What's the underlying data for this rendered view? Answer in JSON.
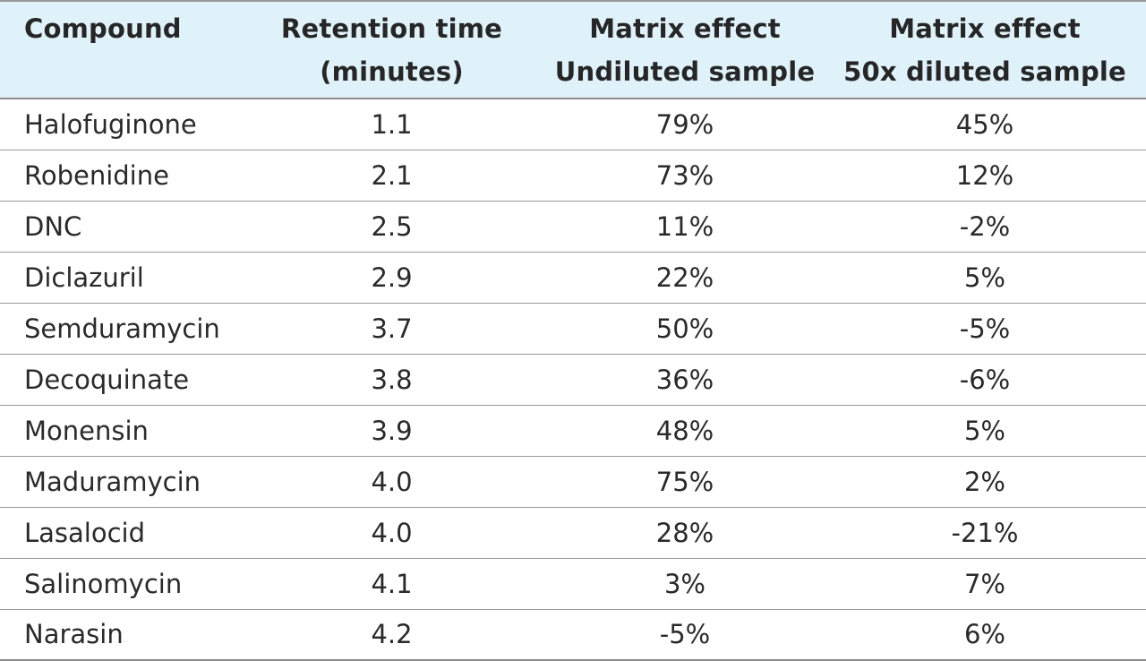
{
  "table": {
    "headers": [
      {
        "line1": "Compound",
        "line2": ""
      },
      {
        "line1": "Retention time",
        "line2": "(minutes)"
      },
      {
        "line1": "Matrix effect",
        "line2": "Undiluted sample"
      },
      {
        "line1": "Matrix effect",
        "line2": "50x diluted sample"
      }
    ],
    "rows": [
      {
        "compound": "Halofuginone",
        "retention": "1.1",
        "undiluted": "79%",
        "diluted": "45%"
      },
      {
        "compound": "Robenidine",
        "retention": "2.1",
        "undiluted": "73%",
        "diluted": "12%"
      },
      {
        "compound": "DNC",
        "retention": "2.5",
        "undiluted": "11%",
        "diluted": "-2%"
      },
      {
        "compound": "Diclazuril",
        "retention": "2.9",
        "undiluted": "22%",
        "diluted": "5%"
      },
      {
        "compound": "Semduramycin",
        "retention": "3.7",
        "undiluted": "50%",
        "diluted": "-5%"
      },
      {
        "compound": "Decoquinate",
        "retention": "3.8",
        "undiluted": "36%",
        "diluted": "-6%"
      },
      {
        "compound": "Monensin",
        "retention": "3.9",
        "undiluted": "48%",
        "diluted": "5%"
      },
      {
        "compound": "Maduramycin",
        "retention": "4.0",
        "undiluted": "75%",
        "diluted": "2%"
      },
      {
        "compound": "Lasalocid",
        "retention": "4.0",
        "undiluted": "28%",
        "diluted": "-21%"
      },
      {
        "compound": "Salinomycin",
        "retention": "4.1",
        "undiluted": "3%",
        "diluted": "7%"
      },
      {
        "compound": "Narasin",
        "retention": "4.2",
        "undiluted": "-5%",
        "diluted": "6%"
      }
    ]
  },
  "colors": {
    "header_background": "#dff2f9",
    "rule": "#9a9a9a",
    "text": "#222222"
  }
}
